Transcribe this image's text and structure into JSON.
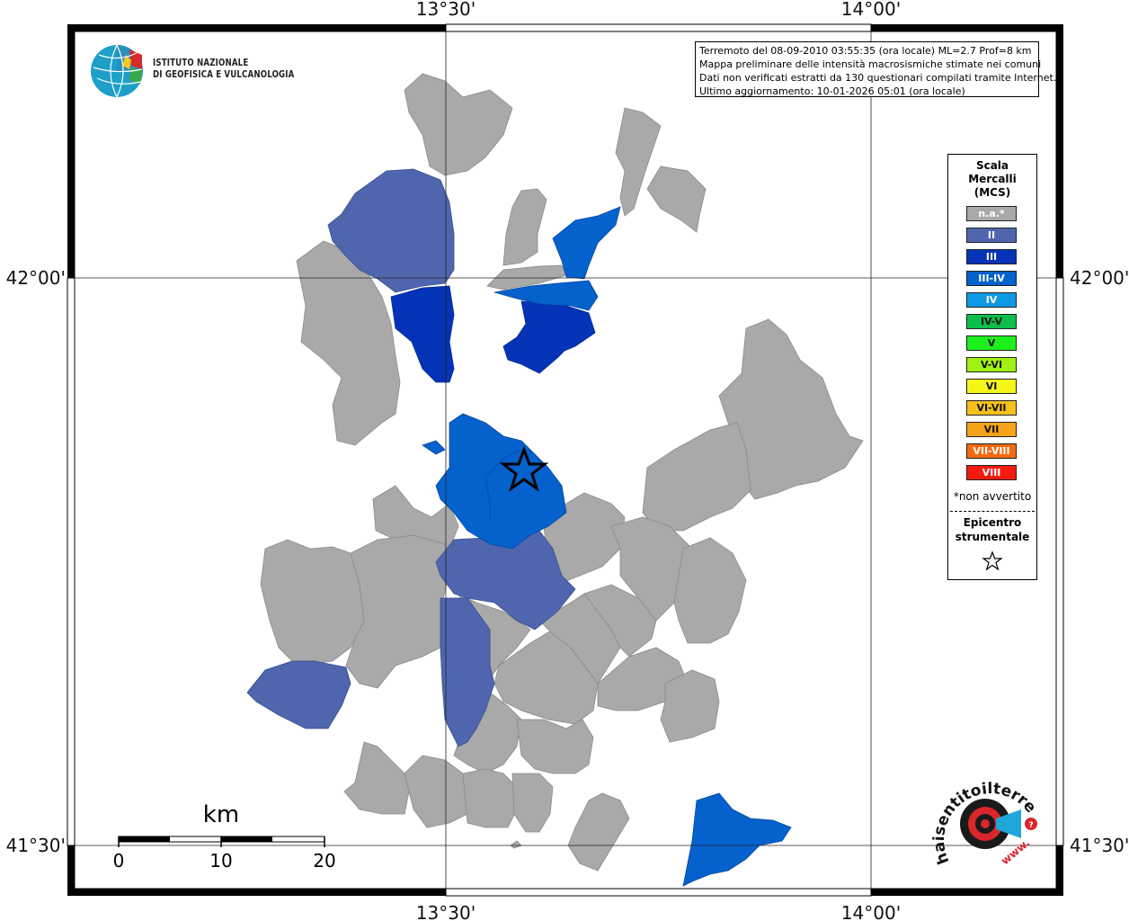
{
  "info": {
    "line1": "Terremoto del 08-09-2010 03:55:35 (ora locale) ML=2.7 Prof=8 km",
    "line2": "Mappa preliminare delle intensità macrosismiche stimate nei comuni",
    "line3": "Dati non verificati estratti da 130 questionari compilati tramite Internet.",
    "line4": "Ultimo aggiornamento: 10-01-2026 05:01 (ora locale)"
  },
  "ingv": {
    "line1": "ISTITUTO NAZIONALE",
    "line2": "DI GEOFISICA E VULCANOLOGIA"
  },
  "coords": {
    "lon_1330": "13°30'",
    "lon_1400": "14°00'",
    "lat_4200": "42°00'",
    "lat_4130": "41°30'"
  },
  "legend": {
    "title1": "Scala",
    "title2": "Mercalli",
    "title3": "(MCS)",
    "items": [
      {
        "label": "n.a.*",
        "color": "#a9a9a9"
      },
      {
        "label": "II",
        "color": "#4f66ae"
      },
      {
        "label": "III",
        "color": "#0433b8"
      },
      {
        "label": "III-IV",
        "color": "#0561cc"
      },
      {
        "label": "IV",
        "color": "#0e99e6"
      },
      {
        "label": "IV-V",
        "color": "#0bbf4a"
      },
      {
        "label": "V",
        "color": "#1cf01c"
      },
      {
        "label": "V-VI",
        "color": "#a0f015"
      },
      {
        "label": "VI",
        "color": "#f5f51a"
      },
      {
        "label": "VI-VII",
        "color": "#f5c01a"
      },
      {
        "label": "VII",
        "color": "#f5a31a"
      },
      {
        "label": "VII-VIII",
        "color": "#f56a10"
      },
      {
        "label": "VIII",
        "color": "#f51a10"
      }
    ],
    "note": "*non avvertito",
    "epi1": "Epicentro",
    "epi2": "strumentale"
  },
  "scale": {
    "unit": "km",
    "t0": "0",
    "t10": "10",
    "t20": "20"
  },
  "hsl": {
    "text": "haisentitoilterremoto.it",
    "www": "www."
  },
  "colors": {
    "gray": "#a9a9a9",
    "ii": "#4f66ae",
    "iii": "#0433b8",
    "iiiiv": "#0561cc"
  }
}
